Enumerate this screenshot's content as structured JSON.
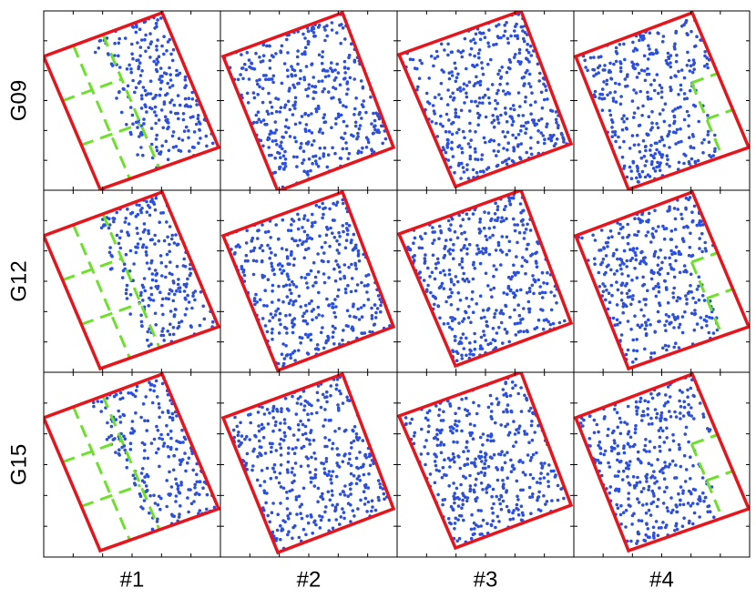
{
  "rows": [
    "G09",
    "G12",
    "G15"
  ],
  "columns": [
    "#1",
    "#2",
    "#3",
    "#4"
  ]
}
